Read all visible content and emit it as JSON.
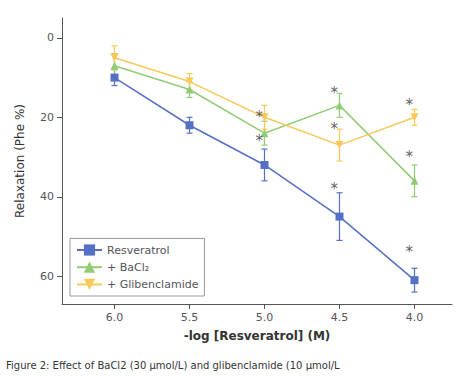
{
  "chart_data": {
    "type": "line",
    "xlabel": "-log [Resveratrol] (M)",
    "ylabel": "Relaxation (Phe %)",
    "caption": "Figure 2: Effect of BaCl2 (30 μmol/L) and glibenclamide (10 μmol/L",
    "x": [
      6.0,
      5.5,
      5.0,
      4.5,
      4.0
    ],
    "series": [
      {
        "name": "Resveratrol",
        "values": [
          10,
          22,
          32,
          45,
          61
        ],
        "errors": [
          2,
          2,
          4,
          6,
          3
        ],
        "marker": "square",
        "line_style": "solid"
      },
      {
        "name": "+ BaCl₂",
        "values": [
          7,
          13,
          24,
          17,
          36
        ],
        "errors": [
          3,
          2,
          3,
          3,
          4
        ],
        "marker": "triangle-up",
        "line_style": "solid"
      },
      {
        "name": "+ Glibenclamide",
        "values": [
          5,
          11,
          20,
          27,
          20
        ],
        "errors": [
          3,
          2,
          3,
          4,
          2
        ],
        "marker": "triangle-down",
        "line_style": "solid"
      }
    ],
    "annotations": [
      {
        "text": "*",
        "x": 5.06,
        "y": 26
      },
      {
        "text": "*",
        "x": 4.56,
        "y": 38
      },
      {
        "text": "*",
        "x": 4.06,
        "y": 54
      },
      {
        "text": "*",
        "x": 5.06,
        "y": 20
      },
      {
        "text": "*",
        "x": 4.56,
        "y": 14
      },
      {
        "text": "*",
        "x": 4.06,
        "y": 30
      },
      {
        "text": "*",
        "x": 4.56,
        "y": 23
      },
      {
        "text": "*",
        "x": 4.06,
        "y": 17
      }
    ],
    "xlim": [
      6.35,
      3.75
    ],
    "ylim": [
      67,
      -5
    ],
    "xticks": [
      {
        "value": 6.0,
        "label": "6.0"
      },
      5.5,
      {
        "value": 5.0,
        "label": "5.0"
      },
      4.5,
      {
        "value": 4.0,
        "label": "4.0"
      }
    ],
    "yticks": [
      0,
      20,
      40,
      60
    ],
    "grid": false,
    "legend": "lower left"
  }
}
